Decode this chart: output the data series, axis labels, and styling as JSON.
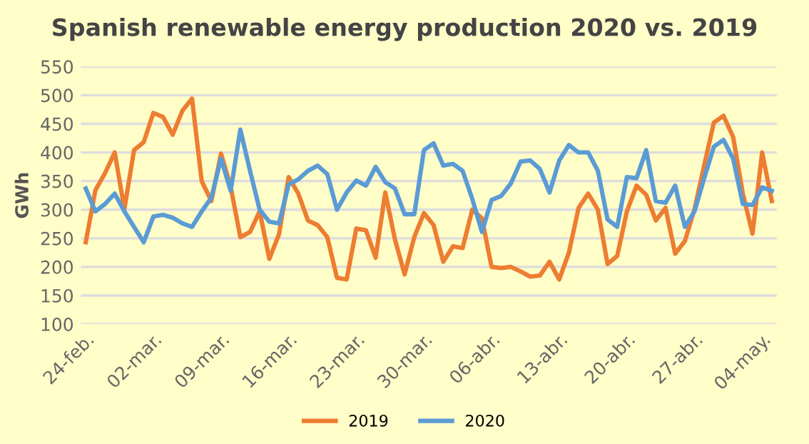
{
  "chart_data": {
    "type": "line",
    "title": "Spanish renewable energy production 2020 vs. 2019",
    "ylabel": "GWh",
    "categories": [
      "24-feb.",
      null,
      null,
      null,
      null,
      null,
      null,
      "02-mar.",
      null,
      null,
      null,
      null,
      null,
      null,
      "09-mar.",
      null,
      null,
      null,
      null,
      null,
      null,
      "16-mar.",
      null,
      null,
      null,
      null,
      null,
      null,
      "23-mar.",
      null,
      null,
      null,
      null,
      null,
      null,
      "30-mar.",
      null,
      null,
      null,
      null,
      null,
      null,
      "06-abr.",
      null,
      null,
      null,
      null,
      null,
      null,
      "13-abr.",
      null,
      null,
      null,
      null,
      null,
      null,
      "20-abr.",
      null,
      null,
      null,
      null,
      null,
      null,
      "27-abr.",
      null,
      null,
      null,
      null,
      null,
      null,
      "04-may.",
      null
    ],
    "series": [
      {
        "name": "2019",
        "color": "#ed7d31",
        "values": [
          243,
          334,
          364,
          400,
          301,
          404,
          418,
          469,
          462,
          431,
          473,
          494,
          350,
          315,
          398,
          340,
          252,
          261,
          297,
          214,
          257,
          357,
          328,
          281,
          273,
          252,
          181,
          178,
          267,
          264,
          216,
          330,
          248,
          187,
          252,
          294,
          273,
          209,
          236,
          233,
          300,
          285,
          200,
          198,
          200,
          192,
          183,
          185,
          209,
          178,
          225,
          303,
          328,
          300,
          205,
          219,
          297,
          342,
          326,
          281,
          303,
          223,
          245,
          301,
          377,
          452,
          464,
          427,
          328,
          258,
          400,
          315
        ]
      },
      {
        "name": "2020",
        "color": "#5b9bd5",
        "values": [
          337,
          297,
          310,
          328,
          297,
          270,
          243,
          288,
          291,
          286,
          276,
          270,
          297,
          321,
          389,
          333,
          440,
          368,
          300,
          279,
          276,
          344,
          353,
          368,
          377,
          362,
          300,
          330,
          351,
          342,
          375,
          348,
          337,
          292,
          292,
          404,
          416,
          377,
          380,
          368,
          319,
          261,
          317,
          324,
          346,
          384,
          386,
          371,
          330,
          386,
          413,
          400,
          400,
          368,
          283,
          270,
          357,
          355,
          404,
          315,
          312,
          342,
          270,
          297,
          355,
          410,
          422,
          389,
          310,
          308,
          339,
          333
        ]
      }
    ],
    "ylim": [
      100,
      550
    ],
    "yticks": [
      100,
      150,
      200,
      250,
      300,
      350,
      400,
      450,
      500,
      550
    ],
    "grid": "y",
    "legend": "bottom"
  }
}
